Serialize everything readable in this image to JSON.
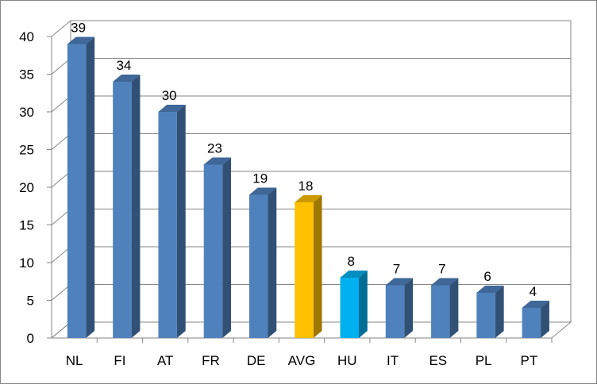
{
  "chart_data": {
    "type": "bar",
    "categories": [
      "NL",
      "FI",
      "AT",
      "FR",
      "DE",
      "AVG",
      "HU",
      "IT",
      "ES",
      "PL",
      "PT"
    ],
    "values": [
      39,
      34,
      30,
      23,
      19,
      18,
      8,
      7,
      7,
      6,
      4
    ],
    "data_labels": [
      "39",
      "34",
      "30",
      "23",
      "19",
      "18",
      "8",
      "7",
      "7",
      "6",
      "4"
    ],
    "bar_colors": [
      "#4F81BD",
      "#4F81BD",
      "#4F81BD",
      "#4F81BD",
      "#4F81BD",
      "#FFC000",
      "#00B0F0",
      "#4F81BD",
      "#4F81BD",
      "#4F81BD",
      "#4F81BD"
    ],
    "y_ticks": [
      "0",
      "5",
      "10",
      "15",
      "20",
      "25",
      "30",
      "35",
      "40"
    ],
    "ylim": [
      0,
      40
    ],
    "y_step": 5,
    "grid": true,
    "style": "3d-column",
    "title": "",
    "xlabel": "",
    "ylabel": ""
  }
}
